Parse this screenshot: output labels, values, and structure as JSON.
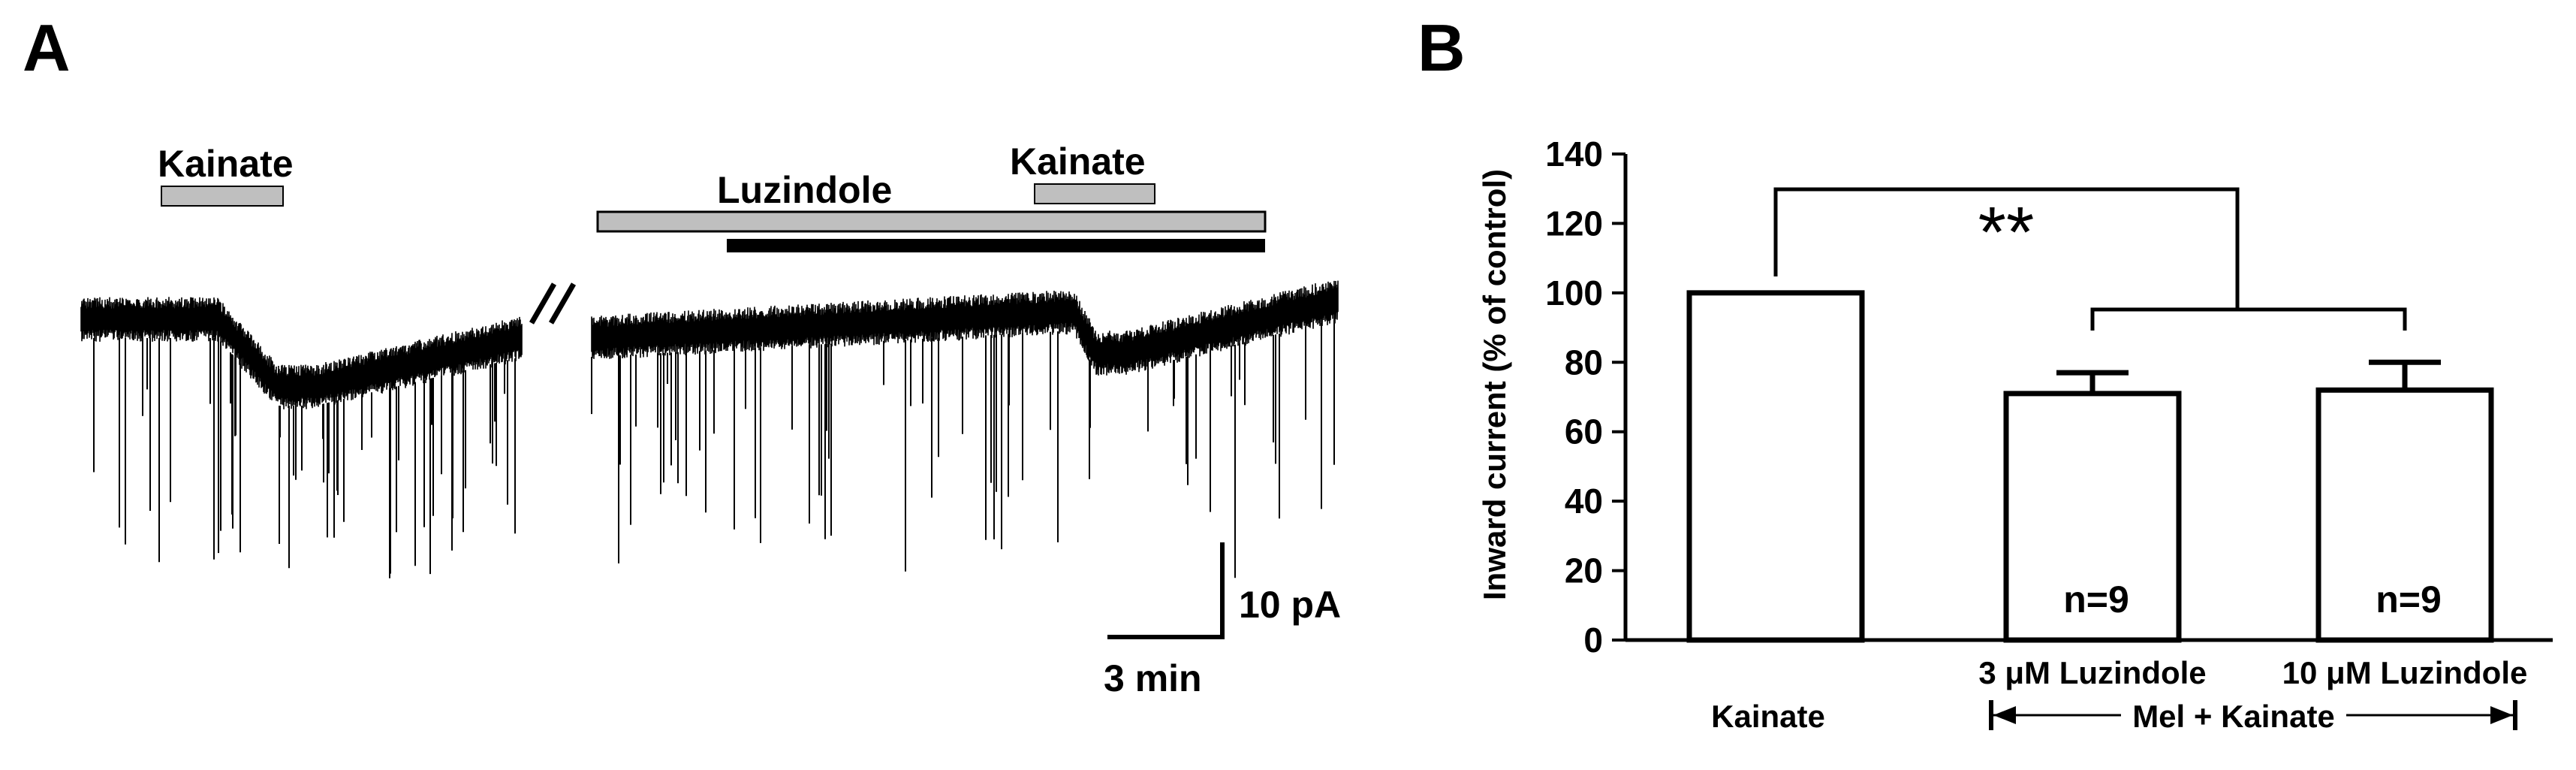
{
  "panels": {
    "a": {
      "label": "A"
    },
    "b": {
      "label": "B"
    }
  },
  "trace": {
    "kainate_label_1": "Kainate",
    "luzindole_label": "Luzindole",
    "kainate_label_2": "Kainate",
    "scale_current": "10 pA",
    "scale_time": "3 min",
    "colors": {
      "trace": "#000000",
      "bar": "#bfbfbf",
      "melatonin_bar": "#000000"
    }
  },
  "chart_data": {
    "type": "bar",
    "ylabel": "Inward current (% of control)",
    "ylim": [
      0,
      140
    ],
    "yticks": [
      0,
      20,
      40,
      60,
      80,
      100,
      120,
      140
    ],
    "categories": [
      "Kainate",
      "3 μM Luzindole",
      "10 μM Luzindole"
    ],
    "values": [
      100,
      71,
      72
    ],
    "errors": [
      0,
      6,
      8
    ],
    "n_labels": [
      "",
      "n=9",
      "n=9"
    ],
    "group_label": "Mel + Kainate",
    "significance": "**",
    "bar_fill": "#ffffff",
    "bar_edge": "#000000"
  }
}
